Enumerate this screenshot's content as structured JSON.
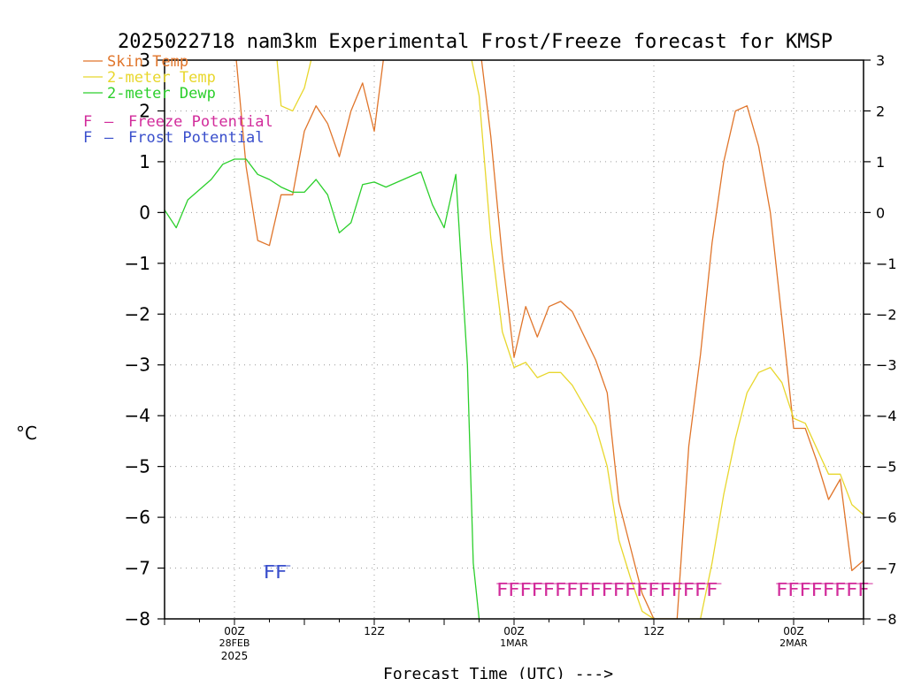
{
  "chart_data": {
    "type": "line",
    "title": "2025022718 nam3km Experimental Frost/Freeze forecast for KMSP",
    "xlabel": "Forecast Time (UTC) --->",
    "ylabel": "°C",
    "ylim": [
      -8,
      3
    ],
    "yticks": [
      "3",
      "2",
      "1",
      "0",
      "−1",
      "−2",
      "−3",
      "−4",
      "−5",
      "−6",
      "−7",
      "−8"
    ],
    "ytick_values": [
      3,
      2,
      1,
      0,
      -1,
      -2,
      -3,
      -4,
      -5,
      -6,
      -7,
      -8
    ],
    "xlim": [
      0,
      60
    ],
    "x_unit": "forecast hours from 2025-02-27 18Z",
    "x_ticks": [
      {
        "x": 6,
        "label": "00Z",
        "sub": "28FEB",
        "sub2": "2025"
      },
      {
        "x": 18,
        "label": "12Z",
        "sub": "",
        "sub2": ""
      },
      {
        "x": 30,
        "label": "00Z",
        "sub": "1MAR",
        "sub2": ""
      },
      {
        "x": 42,
        "label": "12Z",
        "sub": "",
        "sub2": ""
      },
      {
        "x": 54,
        "label": "00Z",
        "sub": "2MAR",
        "sub2": ""
      }
    ],
    "grid": true,
    "series": [
      {
        "name": "Skin Temp",
        "color": "#e0752b",
        "points": [
          [
            6.0,
            3.4
          ],
          [
            7.0,
            0.9
          ],
          [
            8.0,
            -0.55
          ],
          [
            9.0,
            -0.65
          ],
          [
            10.0,
            0.35
          ],
          [
            11.0,
            0.35
          ],
          [
            12.0,
            1.6
          ],
          [
            13.0,
            2.1
          ],
          [
            14.0,
            1.75
          ],
          [
            15.0,
            1.1
          ],
          [
            16.0,
            2.0
          ],
          [
            17.0,
            2.55
          ],
          [
            18.0,
            1.6
          ],
          [
            19.0,
            3.4
          ],
          [
            27.0,
            3.4
          ],
          [
            28.0,
            1.5
          ],
          [
            29.0,
            -0.9
          ],
          [
            30.0,
            -2.85
          ],
          [
            31.0,
            -1.85
          ],
          [
            32.0,
            -2.45
          ],
          [
            33.0,
            -1.85
          ],
          [
            34.0,
            -1.75
          ],
          [
            35.0,
            -1.95
          ],
          [
            37.0,
            -2.9
          ],
          [
            38.0,
            -3.55
          ],
          [
            39.0,
            -5.7
          ],
          [
            40.0,
            -6.6
          ],
          [
            41.0,
            -7.5
          ],
          [
            42.0,
            -8.0
          ],
          [
            44.0,
            -8.0
          ],
          [
            45.0,
            -4.6
          ],
          [
            46.0,
            -2.8
          ],
          [
            47.0,
            -0.6
          ],
          [
            48.0,
            1.0
          ],
          [
            49.0,
            2.0
          ],
          [
            50.0,
            2.1
          ],
          [
            51.0,
            1.3
          ],
          [
            52.0,
            0.0
          ],
          [
            53.0,
            -2.1
          ],
          [
            54.0,
            -4.25
          ],
          [
            55.0,
            -4.25
          ],
          [
            56.0,
            -4.9
          ],
          [
            57.0,
            -5.65
          ],
          [
            58.0,
            -5.25
          ],
          [
            59.0,
            -7.05
          ],
          [
            60.0,
            -6.85
          ]
        ]
      },
      {
        "name": "2-meter Temp",
        "color": "#e8d72d",
        "points": [
          [
            9.5,
            3.4
          ],
          [
            10.0,
            2.1
          ],
          [
            11.0,
            2.0
          ],
          [
            12.0,
            2.45
          ],
          [
            13.0,
            3.4
          ],
          [
            26.0,
            3.4
          ],
          [
            27.0,
            2.3
          ],
          [
            28.0,
            -0.5
          ],
          [
            29.0,
            -2.35
          ],
          [
            30.0,
            -3.05
          ],
          [
            31.0,
            -2.95
          ],
          [
            32.0,
            -3.25
          ],
          [
            33.0,
            -3.15
          ],
          [
            34.0,
            -3.15
          ],
          [
            35.0,
            -3.4
          ],
          [
            36.0,
            -3.8
          ],
          [
            37.0,
            -4.2
          ],
          [
            38.0,
            -5.0
          ],
          [
            39.0,
            -6.45
          ],
          [
            40.0,
            -7.2
          ],
          [
            41.0,
            -7.85
          ],
          [
            42.0,
            -8.0
          ],
          [
            46.0,
            -8.0
          ],
          [
            47.0,
            -6.9
          ],
          [
            48.0,
            -5.55
          ],
          [
            49.0,
            -4.45
          ],
          [
            50.0,
            -3.55
          ],
          [
            51.0,
            -3.15
          ],
          [
            52.0,
            -3.05
          ],
          [
            53.0,
            -3.35
          ],
          [
            54.0,
            -4.05
          ],
          [
            55.0,
            -4.15
          ],
          [
            56.0,
            -4.65
          ],
          [
            57.0,
            -5.15
          ],
          [
            58.0,
            -5.15
          ],
          [
            59.0,
            -5.75
          ],
          [
            60.0,
            -5.95
          ]
        ]
      },
      {
        "name": "2-meter Dewp",
        "color": "#2ccf2c",
        "points": [
          [
            0.0,
            0.05
          ],
          [
            1.0,
            -0.3
          ],
          [
            2.0,
            0.25
          ],
          [
            3.0,
            0.45
          ],
          [
            4.0,
            0.65
          ],
          [
            5.0,
            0.95
          ],
          [
            6.0,
            1.05
          ],
          [
            7.0,
            1.05
          ],
          [
            8.0,
            0.75
          ],
          [
            9.0,
            0.65
          ],
          [
            10.0,
            0.5
          ],
          [
            11.0,
            0.4
          ],
          [
            12.0,
            0.4
          ],
          [
            13.0,
            0.65
          ],
          [
            14.0,
            0.35
          ],
          [
            15.0,
            -0.4
          ],
          [
            16.0,
            -0.2
          ],
          [
            17.0,
            0.55
          ],
          [
            18.0,
            0.6
          ],
          [
            19.0,
            0.5
          ],
          [
            20.0,
            0.6
          ],
          [
            21.0,
            0.7
          ],
          [
            22.0,
            0.8
          ],
          [
            23.0,
            0.15
          ],
          [
            24.0,
            -0.3
          ],
          [
            25.0,
            0.75
          ],
          [
            26.0,
            -3.0
          ],
          [
            26.5,
            -6.9
          ],
          [
            27.0,
            -8.0
          ]
        ]
      }
    ],
    "flag_rows": [
      {
        "label": "FF",
        "type": "Frost Potential",
        "x_start": 8.5,
        "x_end": 10.5,
        "y": -7.2,
        "color": "#3a4fcc",
        "underline": true
      },
      {
        "label": "FFFFFFFFFFFFFFFFFFF",
        "type": "Freeze Potential",
        "x_start": 28.5,
        "x_end": 47.5,
        "y": -7.55,
        "color": "#d22c9b",
        "underline": true
      },
      {
        "label": "FFFFFFFF",
        "type": "Freeze Potential",
        "x_start": 52.5,
        "x_end": 60.5,
        "y": -7.55,
        "color": "#d22c9b",
        "underline": true
      }
    ]
  },
  "legend": {
    "items": [
      {
        "label": "Skin Temp",
        "color": "#e0752b",
        "kind": "line"
      },
      {
        "label": "2-meter Temp",
        "color": "#e8d72d",
        "kind": "line"
      },
      {
        "label": "2-meter Dewp",
        "color": "#2ccf2c",
        "kind": "line"
      }
    ],
    "flags": [
      {
        "glyph": "F",
        "label": "Freeze Potential",
        "color": "#d22c9b"
      },
      {
        "glyph": "F",
        "label": "Frost Potential",
        "color": "#3a4fcc"
      }
    ],
    "dash": "–"
  }
}
